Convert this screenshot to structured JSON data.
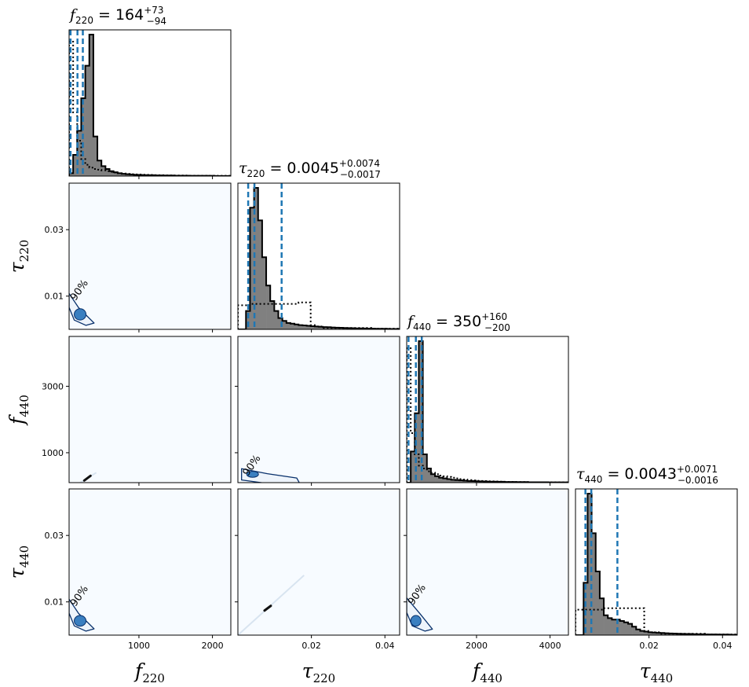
{
  "chart_data": {
    "type": "corner",
    "parameters": [
      {
        "id": "f220",
        "symbol": "f",
        "sub": "220",
        "range": [
          50,
          2250
        ],
        "ticks": [
          1000,
          2000
        ],
        "tick_labels": [
          "1000",
          "2000"
        ],
        "title": {
          "value": "164",
          "upper": "+73",
          "lower": "−94"
        },
        "quantiles": [
          70,
          164,
          237
        ]
      },
      {
        "id": "tau220",
        "symbol": "τ",
        "sub": "220",
        "range": [
          0.0,
          0.044
        ],
        "ticks": [
          0.02,
          0.04
        ],
        "tick_labels": [
          "0.02",
          "0.04"
        ],
        "y_ticks": [
          0.01,
          0.03
        ],
        "y_tick_labels": [
          "0.01",
          "0.03"
        ],
        "title": {
          "value": "0.0045",
          "upper": "+0.0074",
          "lower": "−0.0017"
        },
        "quantiles": [
          0.0028,
          0.0045,
          0.0119
        ]
      },
      {
        "id": "f440",
        "symbol": "f",
        "sub": "440",
        "range": [
          100,
          4500
        ],
        "ticks": [
          2000,
          4000
        ],
        "tick_labels": [
          "2000",
          "4000"
        ],
        "y_ticks": [
          1000,
          3000
        ],
        "y_tick_labels": [
          "1000",
          "3000"
        ],
        "title": {
          "value": "350",
          "upper": "+160",
          "lower": "−200"
        },
        "quantiles": [
          150,
          350,
          510
        ]
      },
      {
        "id": "tau440",
        "symbol": "τ",
        "sub": "440",
        "range": [
          0.0,
          0.044
        ],
        "ticks": [
          0.02,
          0.04
        ],
        "tick_labels": [
          "0.02",
          "0.04"
        ],
        "y_ticks": [
          0.01,
          0.03
        ],
        "y_tick_labels": [
          "0.01",
          "0.03"
        ],
        "title": {
          "value": "0.0043",
          "upper": "+0.0071",
          "lower": "−0.0016"
        },
        "quantiles": [
          0.0027,
          0.0043,
          0.0114
        ]
      }
    ],
    "histograms": [
      {
        "param": "f220",
        "posterior": [
          0.02,
          0.15,
          0.32,
          0.55,
          0.78,
          1.0,
          0.28,
          0.11,
          0.07,
          0.05,
          0.035,
          0.027,
          0.02,
          0.016,
          0.013,
          0.011,
          0.009,
          0.008,
          0.007,
          0.006,
          0.006,
          0.005,
          0.005,
          0.004,
          0.004,
          0.004,
          0.003,
          0.003,
          0.003,
          0.003,
          0.002,
          0.002,
          0.002,
          0.002,
          0.002,
          0.002,
          0.001,
          0.001,
          0.001,
          0.001
        ],
        "prior": [
          0.95,
          0.45,
          0.25,
          0.12,
          0.08,
          0.06,
          0.05,
          0.045,
          0.04,
          0.035,
          0.03,
          0.025,
          0.02,
          0.018,
          0.015,
          0.013,
          0.012,
          0.011,
          0.01,
          0.009,
          0.008,
          0.007,
          0.006,
          0.006,
          0.005,
          0.005,
          0.004,
          0.004,
          0.004,
          0.003,
          0.003,
          0.003,
          0.003,
          0.003,
          0.002,
          0.002,
          0.002,
          0.002,
          0.002,
          0.002
        ]
      },
      {
        "param": "tau220",
        "posterior": [
          0.0,
          0.0,
          0.13,
          0.86,
          1.0,
          0.77,
          0.51,
          0.31,
          0.2,
          0.13,
          0.08,
          0.06,
          0.045,
          0.04,
          0.035,
          0.03,
          0.028,
          0.025,
          0.022,
          0.02,
          0.018,
          0.016,
          0.015,
          0.013,
          0.012,
          0.011,
          0.01,
          0.009,
          0.008,
          0.007,
          0.007,
          0.006,
          0.005,
          0.005,
          0.004,
          0.004,
          0.004,
          0.003,
          0.003,
          0.003
        ],
        "prior": [
          0.17,
          0.17,
          0.17,
          0.18,
          0.18,
          0.18,
          0.18,
          0.18,
          0.18,
          0.18,
          0.18,
          0.18,
          0.18,
          0.18,
          0.18,
          0.19,
          0.19,
          0.19,
          0.03,
          0.02,
          0.02,
          0.01,
          0.01,
          0.01,
          0.01,
          0.01,
          0.01,
          0.01,
          0.01,
          0.01,
          0.01,
          0.01,
          0.01,
          0.005,
          0.005,
          0.005,
          0.005,
          0.005,
          0.005,
          0.005
        ]
      },
      {
        "param": "f440",
        "posterior": [
          0.0,
          0.22,
          0.49,
          1.0,
          0.2,
          0.1,
          0.06,
          0.045,
          0.035,
          0.03,
          0.025,
          0.02,
          0.018,
          0.016,
          0.014,
          0.012,
          0.011,
          0.01,
          0.009,
          0.008,
          0.007,
          0.007,
          0.006,
          0.006,
          0.005,
          0.005,
          0.005,
          0.004,
          0.004,
          0.004,
          0.003,
          0.003,
          0.003,
          0.003,
          0.003,
          0.002,
          0.002,
          0.002,
          0.002,
          0.002
        ],
        "prior": [
          0.95,
          0.35,
          0.2,
          0.12,
          0.1,
          0.08,
          0.07,
          0.06,
          0.05,
          0.045,
          0.04,
          0.035,
          0.03,
          0.025,
          0.022,
          0.018,
          0.015,
          0.013,
          0.012,
          0.011,
          0.01,
          0.009,
          0.008,
          0.007,
          0.006,
          0.005,
          0.005,
          0.004,
          0.004,
          0.004,
          0.003,
          0.003,
          0.003,
          0.003,
          0.002,
          0.002,
          0.002,
          0.002,
          0.002,
          0.002
        ]
      },
      {
        "param": "tau440",
        "posterior": [
          0.0,
          0.0,
          0.37,
          1.0,
          0.72,
          0.45,
          0.26,
          0.14,
          0.12,
          0.11,
          0.11,
          0.1,
          0.09,
          0.08,
          0.06,
          0.04,
          0.03,
          0.025,
          0.02,
          0.018,
          0.016,
          0.015,
          0.013,
          0.012,
          0.011,
          0.01,
          0.009,
          0.008,
          0.008,
          0.007,
          0.006,
          0.006,
          0.005,
          0.005,
          0.005,
          0.004,
          0.004,
          0.004,
          0.003,
          0.003
        ],
        "prior": [
          0.18,
          0.18,
          0.18,
          0.18,
          0.18,
          0.18,
          0.18,
          0.19,
          0.19,
          0.19,
          0.19,
          0.19,
          0.19,
          0.19,
          0.19,
          0.19,
          0.19,
          0.03,
          0.02,
          0.02,
          0.02,
          0.01,
          0.01,
          0.01,
          0.01,
          0.01,
          0.01,
          0.01,
          0.01,
          0.01,
          0.01,
          0.01,
          0.005,
          0.005,
          0.005,
          0.005,
          0.005,
          0.005,
          0.005,
          0.005
        ]
      }
    ],
    "contour_panels": [
      {
        "x": "f220",
        "y": "tau220",
        "label": "90%",
        "inner": {
          "center": [
            200,
            0.0045
          ],
          "radii": [
            80,
            0.0017
          ]
        },
        "outer_path": [
          [
            50,
            0.0108
          ],
          [
            180,
            0.0065
          ],
          [
            390,
            0.0019
          ],
          [
            280,
            0.0012
          ],
          [
            120,
            0.0028
          ],
          [
            50,
            0.0066
          ]
        ]
      },
      {
        "x": "tau220",
        "y": "f440",
        "label": "90%",
        "inner": {
          "center": [
            0.004,
            350
          ],
          "radii": [
            0.0016,
            90
          ]
        },
        "outer_path": [
          [
            0.001,
            520
          ],
          [
            0.008,
            370
          ],
          [
            0.016,
            240
          ],
          [
            0.017,
            40
          ],
          [
            0.009,
            60
          ],
          [
            0.001,
            180
          ]
        ]
      },
      {
        "x": "f220",
        "y": "tau440",
        "label": "90%",
        "inner": {
          "center": [
            200,
            0.0043
          ],
          "radii": [
            80,
            0.0016
          ]
        },
        "outer_path": [
          [
            50,
            0.0108
          ],
          [
            180,
            0.0065
          ],
          [
            390,
            0.0019
          ],
          [
            280,
            0.0012
          ],
          [
            120,
            0.0028
          ],
          [
            50,
            0.0066
          ]
        ]
      },
      {
        "x": "f440",
        "y": "tau440",
        "label": "90%",
        "inner": {
          "center": [
            350,
            0.0043
          ],
          "radii": [
            140,
            0.0016
          ]
        },
        "outer_path": [
          [
            100,
            0.0112
          ],
          [
            480,
            0.0062
          ],
          [
            800,
            0.0018
          ],
          [
            600,
            0.0012
          ],
          [
            250,
            0.0028
          ],
          [
            100,
            0.0068
          ]
        ]
      }
    ],
    "line_panels": [
      {
        "x": "f220",
        "y": "f440",
        "from": [
          200,
          100
        ],
        "to": [
          420,
          400
        ]
      },
      {
        "x": "tau220",
        "y": "tau440",
        "from": [
          0.0,
          0.0
        ],
        "to": [
          0.018,
          0.018
        ]
      }
    ],
    "colors": {
      "fill": "#808080",
      "edge": "#000000",
      "quantile": "#1f77b4",
      "background": "#f7fbff",
      "contour": "#08306b",
      "inner": "#3a7fc0"
    }
  }
}
